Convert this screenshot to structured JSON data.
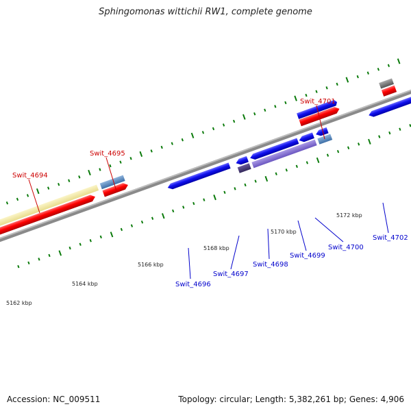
{
  "title": "Sphingomonas wittichii RW1, complete genome",
  "footer": {
    "accession": "Accession: NC_009511",
    "summary": "Topology: circular; Length: 5,382,261 bp; Genes: 4,906"
  },
  "colors": {
    "forward_label": "#cc0000",
    "reverse_label": "#0000cc",
    "backbone": "#888888",
    "tick": "#006600"
  },
  "kbp_labels": [
    "5162 kbp",
    "5164 kbp",
    "5166 kbp",
    "5168 kbp",
    "5170 kbp",
    "5172 kbp"
  ],
  "genes": [
    {
      "name": "Swit_4694",
      "strand": "forward"
    },
    {
      "name": "Swit_4695",
      "strand": "forward"
    },
    {
      "name": "Swit_4701",
      "strand": "forward"
    },
    {
      "name": "Swit_4696",
      "strand": "reverse"
    },
    {
      "name": "Swit_4697",
      "strand": "reverse"
    },
    {
      "name": "Swit_4698",
      "strand": "reverse"
    },
    {
      "name": "Swit_4699",
      "strand": "reverse"
    },
    {
      "name": "Swit_4700",
      "strand": "reverse"
    },
    {
      "name": "Swit_4702",
      "strand": "reverse"
    }
  ]
}
